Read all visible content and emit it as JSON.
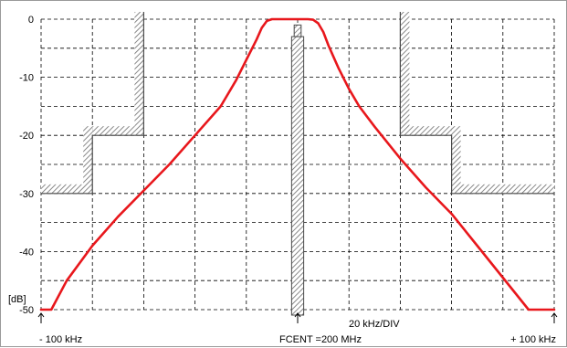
{
  "chart_data": {
    "type": "line",
    "title": "",
    "xlabel": "",
    "ylabel": "[dB]",
    "xlim": [
      -100,
      100
    ],
    "ylim": [
      -50,
      0
    ],
    "x_unit": "kHz",
    "y_unit": "dB",
    "x_divisions": 10,
    "y_ticks": [
      0,
      -10,
      -20,
      -30,
      -40,
      -50
    ],
    "y_tick_labels": [
      "0",
      "-10",
      "-20",
      "-30",
      "-40",
      "-50"
    ],
    "grid": true,
    "grid_style": "dashed",
    "x_labels": {
      "left": "- 100 kHz",
      "center": "FCENT =200 MHz",
      "right": "+ 100 kHz",
      "division": "20 kHz/DIV"
    },
    "series": [
      {
        "color": "#e8171c",
        "x": [
          -100,
          -96,
          -90,
          -80,
          -70,
          -60,
          -50,
          -40,
          -30,
          -24,
          -20,
          -16,
          -14,
          -12,
          -10,
          -8,
          -6,
          -4,
          -2,
          0,
          2,
          4,
          6,
          8,
          10,
          12,
          14,
          16,
          20,
          24,
          30,
          40,
          50,
          60,
          70,
          80,
          90,
          96,
          100
        ],
        "y": [
          -50,
          -50,
          -45,
          -39,
          -34,
          -29.5,
          -25,
          -20,
          -15,
          -10.5,
          -7,
          -3.5,
          -1.5,
          -0.3,
          0,
          0,
          0,
          0,
          0,
          0,
          0,
          0,
          -0.1,
          -0.7,
          -2.2,
          -4.5,
          -6.5,
          -8.5,
          -12,
          -15,
          -18.5,
          -24,
          -29,
          -33.5,
          -39,
          -44.5,
          -50,
          -50,
          -50
        ]
      }
    ],
    "masks": [
      {
        "name": "lower-left-mask",
        "color": "#9a9a9a",
        "points": [
          [
            -100,
            -30
          ],
          [
            -80,
            -30
          ],
          [
            -80,
            -20
          ],
          [
            -60,
            -20
          ],
          [
            -60,
            0
          ]
        ]
      },
      {
        "name": "upper-right-mask",
        "color": "#9a9a9a",
        "points": [
          [
            40,
            0
          ],
          [
            40,
            -20
          ],
          [
            60,
            -20
          ],
          [
            60,
            -30
          ],
          [
            100,
            -30
          ]
        ]
      },
      {
        "name": "center-column",
        "color": "#9a9a9a",
        "x_range": [
          -2,
          2
        ],
        "y_range": [
          -3,
          -52
        ],
        "cap_x_range": [
          -1,
          1
        ],
        "cap_y_range": [
          -1,
          -3
        ]
      }
    ],
    "markers": [
      -100,
      0,
      100
    ]
  }
}
